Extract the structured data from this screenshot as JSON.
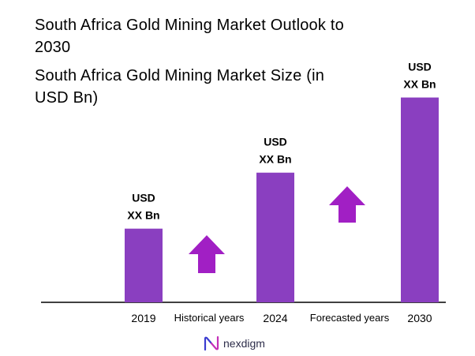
{
  "header": {
    "title": "South Africa Gold Mining Market Outlook to 2030",
    "subtitle": "South Africa Gold Mining Market Size (in USD Bn)"
  },
  "chart_data": {
    "type": "bar",
    "categories": [
      "2019",
      "2024",
      "2030"
    ],
    "values": [
      100,
      176,
      278
    ],
    "value_labels": [
      {
        "line1": "USD",
        "line2": "XX Bn"
      },
      {
        "line1": "USD",
        "line2": "XX Bn"
      },
      {
        "line1": "USD",
        "line2": "XX Bn"
      }
    ],
    "annotations": [
      "Historical years",
      "Forecasted years"
    ],
    "bar_color": "#8a3fc0",
    "arrow_color": "#a11fc4",
    "grid": false,
    "ylim": [
      0,
      300
    ]
  },
  "brand": {
    "name": "nexdigm",
    "icon": "nexdigm-logo-icon",
    "colors": [
      "#3b3cd0",
      "#c42fb8"
    ]
  }
}
